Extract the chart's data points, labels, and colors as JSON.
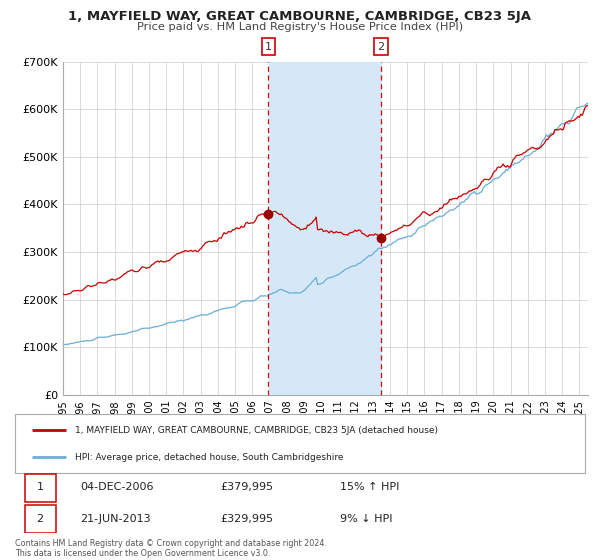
{
  "title": "1, MAYFIELD WAY, GREAT CAMBOURNE, CAMBRIDGE, CB23 5JA",
  "subtitle": "Price paid vs. HM Land Registry's House Price Index (HPI)",
  "ylim": [
    0,
    700000
  ],
  "yticks": [
    0,
    100000,
    200000,
    300000,
    400000,
    500000,
    600000,
    700000
  ],
  "ytick_labels": [
    "£0",
    "£100K",
    "£200K",
    "£300K",
    "£400K",
    "£500K",
    "£600K",
    "£700K"
  ],
  "xlim_start": 1995.0,
  "xlim_end": 2025.5,
  "xtick_years": [
    1995,
    1996,
    1997,
    1998,
    1999,
    2000,
    2001,
    2002,
    2003,
    2004,
    2005,
    2006,
    2007,
    2008,
    2009,
    2010,
    2011,
    2012,
    2013,
    2014,
    2015,
    2016,
    2017,
    2018,
    2019,
    2020,
    2021,
    2022,
    2023,
    2024,
    2025
  ],
  "line1_color": "#cc0000",
  "line2_color": "#6baed6",
  "fill_color": "#d6e8f7",
  "marker_color": "#990000",
  "transaction1_x": 2006.92,
  "transaction1_y": 379995,
  "transaction2_x": 2013.47,
  "transaction2_y": 329995,
  "legend1_label": "1, MAYFIELD WAY, GREAT CAMBOURNE, CAMBRIDGE, CB23 5JA (detached house)",
  "legend2_label": "HPI: Average price, detached house, South Cambridgeshire",
  "table_row1": [
    "1",
    "04-DEC-2006",
    "£379,995",
    "15% ↑ HPI"
  ],
  "table_row2": [
    "2",
    "21-JUN-2013",
    "£329,995",
    "9% ↓ HPI"
  ],
  "footer": "Contains HM Land Registry data © Crown copyright and database right 2024.\nThis data is licensed under the Open Government Licence v3.0.",
  "background_color": "#ffffff",
  "grid_color": "#cccccc"
}
